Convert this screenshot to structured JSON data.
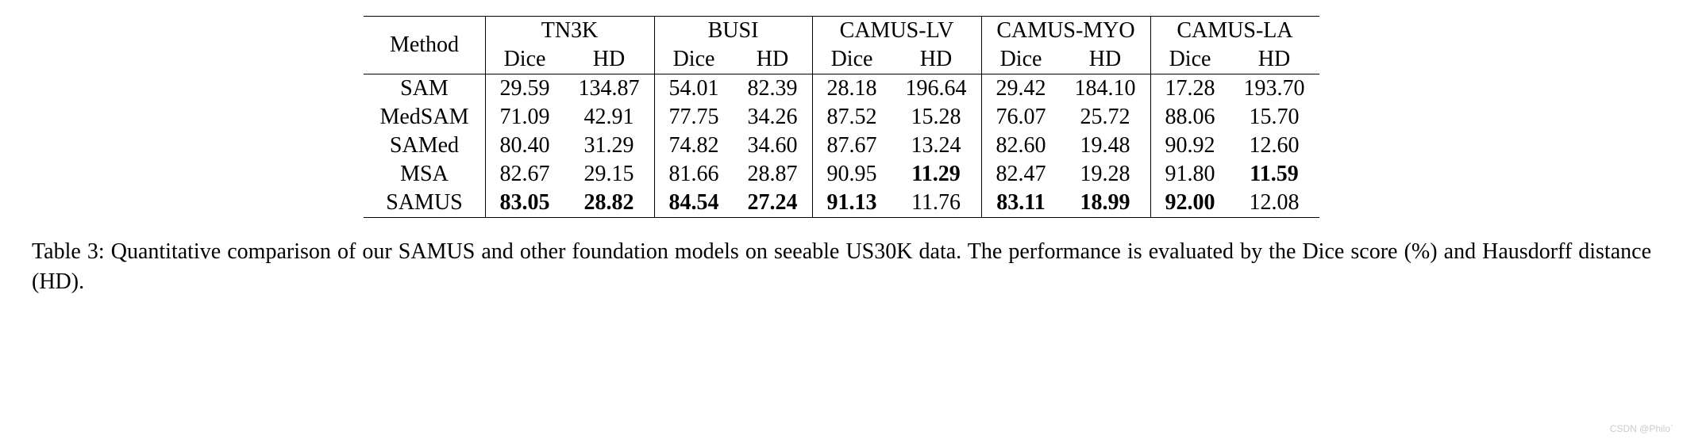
{
  "table": {
    "type": "table",
    "border_color": "#000000",
    "background_color": "#ffffff",
    "text_color": "#000000",
    "font_family": "Times New Roman",
    "header_fontsize": 28,
    "cell_fontsize": 28,
    "header": {
      "method": "Method",
      "groups": [
        {
          "name": "TN3K",
          "sub": [
            "Dice",
            "HD"
          ]
        },
        {
          "name": "BUSI",
          "sub": [
            "Dice",
            "HD"
          ]
        },
        {
          "name": "CAMUS-LV",
          "sub": [
            "Dice",
            "HD"
          ]
        },
        {
          "name": "CAMUS-MYO",
          "sub": [
            "Dice",
            "HD"
          ]
        },
        {
          "name": "CAMUS-LA",
          "sub": [
            "Dice",
            "HD"
          ]
        }
      ]
    },
    "rows": [
      {
        "method": "SAM",
        "cells": [
          {
            "v": "29.59",
            "bold": false
          },
          {
            "v": "134.87",
            "bold": false
          },
          {
            "v": "54.01",
            "bold": false
          },
          {
            "v": "82.39",
            "bold": false
          },
          {
            "v": "28.18",
            "bold": false
          },
          {
            "v": "196.64",
            "bold": false
          },
          {
            "v": "29.42",
            "bold": false
          },
          {
            "v": "184.10",
            "bold": false
          },
          {
            "v": "17.28",
            "bold": false
          },
          {
            "v": "193.70",
            "bold": false
          }
        ]
      },
      {
        "method": "MedSAM",
        "cells": [
          {
            "v": "71.09",
            "bold": false
          },
          {
            "v": "42.91",
            "bold": false
          },
          {
            "v": "77.75",
            "bold": false
          },
          {
            "v": "34.26",
            "bold": false
          },
          {
            "v": "87.52",
            "bold": false
          },
          {
            "v": "15.28",
            "bold": false
          },
          {
            "v": "76.07",
            "bold": false
          },
          {
            "v": "25.72",
            "bold": false
          },
          {
            "v": "88.06",
            "bold": false
          },
          {
            "v": "15.70",
            "bold": false
          }
        ]
      },
      {
        "method": "SAMed",
        "cells": [
          {
            "v": "80.40",
            "bold": false
          },
          {
            "v": "31.29",
            "bold": false
          },
          {
            "v": "74.82",
            "bold": false
          },
          {
            "v": "34.60",
            "bold": false
          },
          {
            "v": "87.67",
            "bold": false
          },
          {
            "v": "13.24",
            "bold": false
          },
          {
            "v": "82.60",
            "bold": false
          },
          {
            "v": "19.48",
            "bold": false
          },
          {
            "v": "90.92",
            "bold": false
          },
          {
            "v": "12.60",
            "bold": false
          }
        ]
      },
      {
        "method": "MSA",
        "cells": [
          {
            "v": "82.67",
            "bold": false
          },
          {
            "v": "29.15",
            "bold": false
          },
          {
            "v": "81.66",
            "bold": false
          },
          {
            "v": "28.87",
            "bold": false
          },
          {
            "v": "90.95",
            "bold": false
          },
          {
            "v": "11.29",
            "bold": true
          },
          {
            "v": "82.47",
            "bold": false
          },
          {
            "v": "19.28",
            "bold": false
          },
          {
            "v": "91.80",
            "bold": false
          },
          {
            "v": "11.59",
            "bold": true
          }
        ]
      },
      {
        "method": "SAMUS",
        "cells": [
          {
            "v": "83.05",
            "bold": true
          },
          {
            "v": "28.82",
            "bold": true
          },
          {
            "v": "84.54",
            "bold": true
          },
          {
            "v": "27.24",
            "bold": true
          },
          {
            "v": "91.13",
            "bold": true
          },
          {
            "v": "11.76",
            "bold": false
          },
          {
            "v": "83.11",
            "bold": true
          },
          {
            "v": "18.99",
            "bold": true
          },
          {
            "v": "92.00",
            "bold": true
          },
          {
            "v": "12.08",
            "bold": false
          }
        ]
      }
    ]
  },
  "caption": "Table 3: Quantitative comparison of our SAMUS and other foundation models on seeable US30K data. The performance is evaluated by the Dice score (%) and Hausdorff distance (HD).",
  "watermark": "CSDN @Philo`"
}
